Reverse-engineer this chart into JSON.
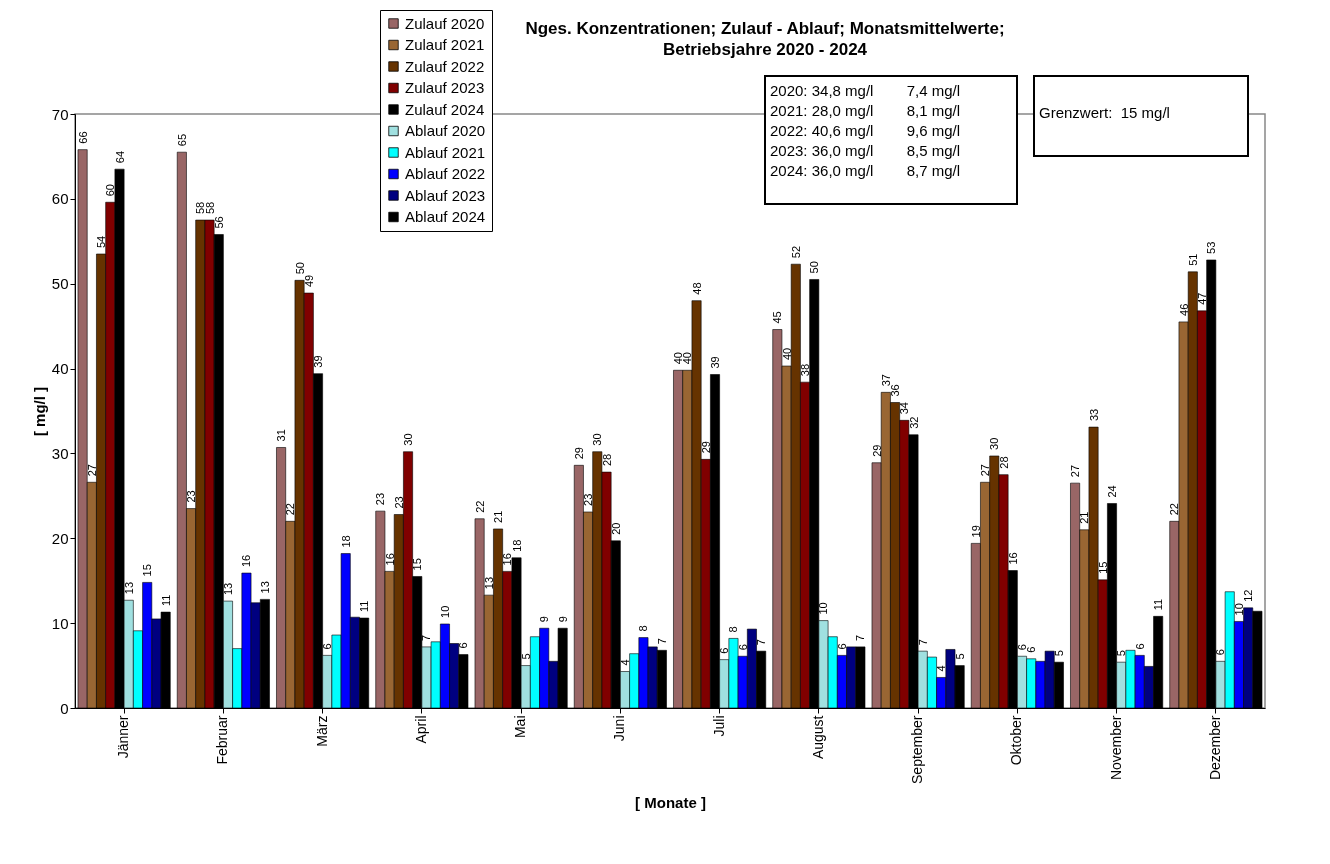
{
  "chart_data": {
    "type": "bar",
    "title": "Nges. Konzentrationen; Zulauf - Ablauf; Monatsmittelwerte;\nBetriebsjahre 2020 - 2024",
    "xlabel": "[ Monate ]",
    "ylabel": "[ mg/l ]",
    "categories": [
      "Jänner",
      "Februar",
      "März",
      "April",
      "Mai",
      "Juni",
      "Juli",
      "August",
      "September",
      "Oktober",
      "November",
      "Dezember"
    ],
    "ylim": [
      0,
      70
    ],
    "yticks": [
      0,
      10,
      20,
      30,
      40,
      50,
      60,
      70
    ],
    "grid": false,
    "legend": "top",
    "annotations": [
      "2020: 34,8 mg/l        7,4 mg/l",
      "2021: 28,0 mg/l        8,1 mg/l",
      "2022: 40,6 mg/l        9,6 mg/l",
      "2023: 36,0 mg/l        8,5 mg/l",
      "2024: 36,0 mg/l        8,7 mg/l",
      "Grenzwert:  15 mg/l"
    ],
    "series": [
      {
        "name": "Zulauf 2020",
        "color": "#996666",
        "values": [
          65.8,
          65.5,
          30.7,
          23.2,
          22.3,
          28.6,
          39.8,
          44.6,
          28.9,
          19.4,
          26.5,
          22.0
        ],
        "value_labels": [
          "66",
          "65",
          "31",
          "23",
          "22",
          "29",
          "40",
          "45",
          "29",
          "19",
          "27",
          "22"
        ]
      },
      {
        "name": "Zulauf 2021",
        "color": "#996633",
        "values": [
          26.6,
          23.5,
          22.0,
          16.1,
          13.3,
          23.1,
          39.8,
          40.3,
          37.2,
          26.6,
          21.0,
          45.5
        ],
        "value_labels": [
          "27",
          "23",
          "22",
          "16",
          "13",
          "23",
          "40",
          "40",
          "37",
          "27",
          "21",
          "46"
        ]
      },
      {
        "name": "Zulauf 2022",
        "color": "#663300",
        "values": [
          53.5,
          57.5,
          50.4,
          22.8,
          21.1,
          30.2,
          48.0,
          52.3,
          36.0,
          29.7,
          33.1,
          51.4
        ],
        "value_labels": [
          "54",
          "58",
          "50",
          "23",
          "21",
          "30",
          "48",
          "52",
          "36",
          "30",
          "33",
          "51"
        ]
      },
      {
        "name": "Zulauf 2023",
        "color": "#800000",
        "values": [
          59.6,
          57.5,
          48.9,
          30.2,
          16.1,
          27.8,
          29.3,
          38.4,
          33.9,
          27.5,
          15.1,
          46.8
        ],
        "value_labels": [
          "60",
          "58",
          "49",
          "30",
          "16",
          "28",
          "29",
          "38",
          "34",
          "28",
          "15",
          "47"
        ]
      },
      {
        "name": "Zulauf 2024",
        "color": "#000000",
        "values": [
          63.5,
          55.8,
          39.4,
          15.5,
          17.7,
          19.7,
          39.3,
          50.5,
          32.2,
          16.2,
          24.1,
          52.8
        ],
        "value_labels": [
          "64",
          "56",
          "39",
          "15",
          "18",
          "20",
          "39",
          "50",
          "32",
          "16",
          "24",
          "53"
        ]
      },
      {
        "name": "Ablauf 2020",
        "color": "#a0e0e0",
        "values": [
          12.7,
          12.6,
          6.2,
          7.2,
          5.0,
          4.3,
          5.7,
          10.3,
          6.7,
          6.1,
          5.4,
          5.5
        ],
        "value_labels": [
          "13",
          "13",
          "6",
          "7",
          "5",
          "4",
          "6",
          "10",
          "7",
          "6",
          "5",
          "6"
        ]
      },
      {
        "name": "Ablauf 2021",
        "color": "#00ffff",
        "values": [
          9.1,
          7.0,
          8.6,
          7.8,
          8.4,
          6.4,
          8.2,
          8.4,
          6.0,
          5.8,
          6.8,
          13.7
        ],
        "value_labels": [
          null,
          null,
          null,
          null,
          null,
          null,
          "8",
          null,
          null,
          "6",
          null,
          null
        ]
      },
      {
        "name": "Ablauf 2022",
        "color": "#0000ff",
        "values": [
          14.8,
          15.9,
          18.2,
          9.9,
          9.4,
          8.3,
          6.1,
          6.2,
          3.6,
          5.5,
          6.2,
          10.2
        ],
        "value_labels": [
          "15",
          "16",
          "18",
          "10",
          "9",
          "8",
          "6",
          "6",
          "4",
          null,
          "6",
          "10"
        ]
      },
      {
        "name": "Ablauf 2023",
        "color": "#000080",
        "values": [
          10.5,
          12.4,
          10.7,
          7.6,
          5.5,
          7.2,
          9.3,
          7.2,
          6.9,
          6.7,
          4.9,
          11.8
        ],
        "value_labels": [
          null,
          null,
          null,
          null,
          null,
          null,
          null,
          null,
          null,
          null,
          null,
          "12"
        ]
      },
      {
        "name": "Ablauf 2024",
        "color": "#000000",
        "values": [
          11.3,
          12.8,
          10.6,
          6.3,
          9.4,
          6.8,
          6.7,
          7.2,
          5.0,
          5.4,
          10.8,
          11.4
        ],
        "value_labels": [
          "11",
          "13",
          "11",
          "6",
          "9",
          "7",
          "7",
          "7",
          "5",
          "5",
          "11",
          null
        ]
      }
    ]
  }
}
